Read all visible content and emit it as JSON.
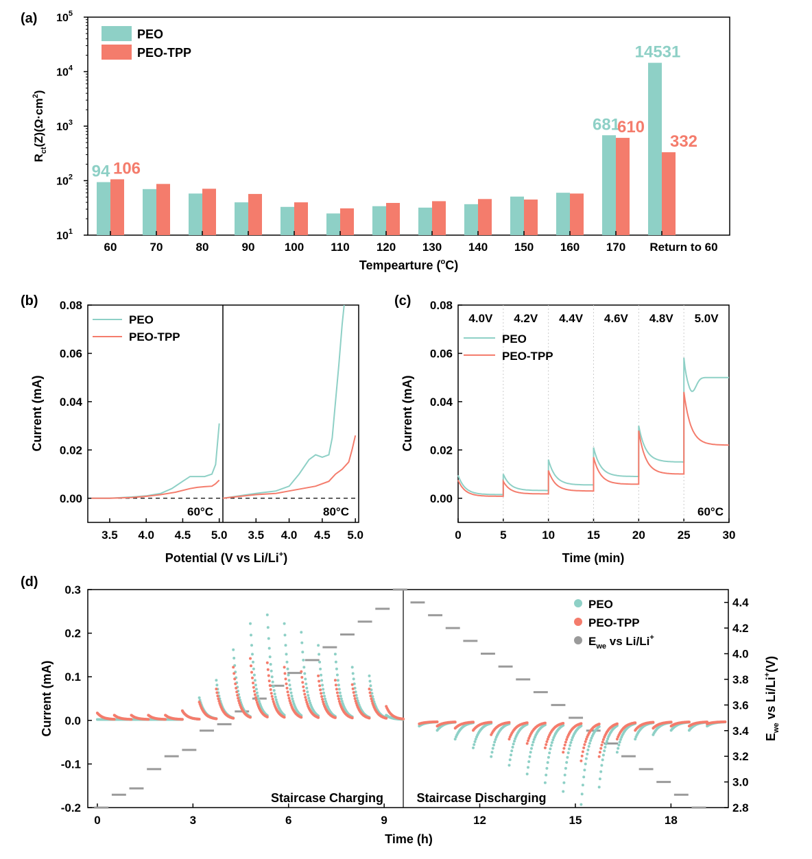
{
  "colors": {
    "peo": "#8ED0C6",
    "tpp": "#F47C6C",
    "ewe": "#9A9A9A",
    "axis": "#000000"
  },
  "chart_data": [
    {
      "panel": "(a)",
      "type": "bar",
      "scale": "log",
      "ylim": [
        10,
        100000
      ],
      "ylabel": "Rct(Z)(Ω·cm2)",
      "xlabel": "Tempearture (°C)",
      "legend_position": "top-left",
      "categories": [
        "60",
        "70",
        "80",
        "90",
        "100",
        "110",
        "120",
        "130",
        "140",
        "150",
        "160",
        "170",
        "Return to 60"
      ],
      "series": [
        {
          "name": "PEO",
          "values": [
            94,
            70,
            58,
            40,
            33,
            25,
            34,
            32,
            37,
            51,
            60,
            681,
            14531
          ]
        },
        {
          "name": "PEO-TPP",
          "values": [
            106,
            87,
            71,
            57,
            40,
            31,
            39,
            42,
            46,
            45,
            58,
            610,
            332
          ]
        }
      ],
      "annotations": [
        {
          "category": "60",
          "series": "PEO",
          "text": "94"
        },
        {
          "category": "60",
          "series": "PEO-TPP",
          "text": "106"
        },
        {
          "category": "170",
          "series": "PEO",
          "text": "681"
        },
        {
          "category": "170",
          "series": "PEO-TPP",
          "text": "610"
        },
        {
          "category": "Return to 60",
          "series": "PEO",
          "text": "14531"
        },
        {
          "category": "Return to 60",
          "series": "PEO-TPP",
          "text": "332"
        }
      ]
    },
    {
      "panel": "(b)",
      "type": "line",
      "ylabel": "Current (mA)",
      "xlabel": "Potential (V vs Li/Li+)",
      "ylim": [
        -0.01,
        0.08
      ],
      "yticks": [
        "0.00",
        "0.02",
        "0.04",
        "0.06",
        "0.08"
      ],
      "legend_position": "top-left",
      "subpanels": [
        {
          "label": "60°C",
          "xlim": [
            3.2,
            5.05
          ],
          "xticks": [
            "3.5",
            "4.0",
            "4.5",
            "5.0"
          ],
          "series": [
            {
              "name": "PEO",
              "x": [
                3.25,
                3.5,
                3.8,
                4.0,
                4.2,
                4.35,
                4.5,
                4.6,
                4.7,
                4.8,
                4.9,
                4.95,
                5.0
              ],
              "y": [
                0.0,
                0.0,
                0.0005,
                0.001,
                0.002,
                0.004,
                0.007,
                0.009,
                0.009,
                0.009,
                0.01,
                0.014,
                0.031
              ]
            },
            {
              "name": "PEO-TPP",
              "x": [
                3.25,
                3.5,
                3.8,
                4.0,
                4.2,
                4.4,
                4.6,
                4.7,
                4.8,
                4.9,
                4.95,
                5.0
              ],
              "y": [
                0.0,
                0.0,
                0.0003,
                0.0008,
                0.0015,
                0.0025,
                0.004,
                0.0045,
                0.0048,
                0.005,
                0.006,
                0.0075
              ]
            }
          ]
        },
        {
          "label": "80°C",
          "xlim": [
            3.0,
            5.05
          ],
          "xticks": [
            "3.5",
            "4.0",
            "4.5",
            "5.0"
          ],
          "series": [
            {
              "name": "PEO",
              "x": [
                3.0,
                3.5,
                3.8,
                4.0,
                4.15,
                4.3,
                4.4,
                4.5,
                4.6,
                4.65,
                4.7,
                4.75,
                4.8,
                4.83
              ],
              "y": [
                0.0,
                0.002,
                0.003,
                0.005,
                0.01,
                0.016,
                0.018,
                0.017,
                0.018,
                0.025,
                0.04,
                0.055,
                0.072,
                0.08
              ]
            },
            {
              "name": "PEO-TPP",
              "x": [
                3.0,
                3.5,
                3.8,
                4.0,
                4.2,
                4.4,
                4.6,
                4.7,
                4.8,
                4.9,
                4.95,
                5.0
              ],
              "y": [
                0.0,
                0.0015,
                0.002,
                0.003,
                0.004,
                0.005,
                0.007,
                0.01,
                0.012,
                0.015,
                0.02,
                0.026
              ]
            }
          ]
        }
      ]
    },
    {
      "panel": "(c)",
      "type": "line",
      "xlabel": "Time (min)",
      "ylabel": "Current (mA)",
      "xlim": [
        0,
        30
      ],
      "ylim": [
        -0.01,
        0.08
      ],
      "xticks": [
        "0",
        "5",
        "10",
        "15",
        "20",
        "25",
        "30"
      ],
      "yticks": [
        "0.00",
        "0.02",
        "0.04",
        "0.06",
        "0.08"
      ],
      "step_labels": [
        "4.0V",
        "4.2V",
        "4.4V",
        "4.6V",
        "4.8V",
        "5.0V"
      ],
      "temperature_label": "60°C",
      "legend_position": "top-left",
      "series": [
        {
          "name": "PEO",
          "steps": [
            {
              "start": 0,
              "peak": 0.0095,
              "end": 0.0015
            },
            {
              "start": 5,
              "peak": 0.01,
              "end": 0.0032
            },
            {
              "start": 10,
              "peak": 0.016,
              "end": 0.0055
            },
            {
              "start": 15,
              "peak": 0.021,
              "end": 0.009
            },
            {
              "start": 20,
              "peak": 0.03,
              "end": 0.015
            },
            {
              "start": 25,
              "peak": 0.055,
              "end": 0.05
            }
          ]
        },
        {
          "name": "PEO-TPP",
          "steps": [
            {
              "start": 0,
              "peak": 0.0075,
              "end": 0.0008
            },
            {
              "start": 5,
              "peak": 0.007,
              "end": 0.0018
            },
            {
              "start": 10,
              "peak": 0.0115,
              "end": 0.003
            },
            {
              "start": 15,
              "peak": 0.017,
              "end": 0.0058
            },
            {
              "start": 20,
              "peak": 0.028,
              "end": 0.01
            },
            {
              "start": 25,
              "peak": 0.044,
              "end": 0.022
            }
          ]
        }
      ]
    },
    {
      "panel": "(d)",
      "type": "scatter",
      "xlabel": "Time (h)",
      "ylabel": "Current (mA)",
      "ylabel_right": "Ewe vs Li/Li+(V)",
      "xlim": [
        -0.3,
        19.8
      ],
      "ylim": [
        -0.2,
        0.3
      ],
      "y2lim": [
        2.8,
        4.5
      ],
      "xticks": [
        "0",
        "3",
        "6",
        "9",
        "12",
        "15",
        "18"
      ],
      "yticks": [
        "-0.2",
        "-0.1",
        "0.0",
        "0.1",
        "0.2",
        "0.3"
      ],
      "y2ticks": [
        "2.8",
        "3.0",
        "3.2",
        "3.4",
        "3.6",
        "3.8",
        "4.0",
        "4.2",
        "4.4"
      ],
      "divider_x": 9.6,
      "region_labels": [
        "Staircase Charging",
        "Staircase Discharging"
      ],
      "legend_position": "top-right",
      "series": [
        {
          "name": "PEO",
          "charge_peaks": [
            0.0,
            0.0,
            0.0,
            0.0,
            0.0,
            0.02,
            0.05,
            0.09,
            0.16,
            0.22,
            0.24,
            0.22,
            0.2,
            0.17,
            0.15,
            0.12,
            0.1,
            0.01
          ],
          "discharge_peaks": [
            -0.01,
            -0.02,
            -0.04,
            -0.06,
            -0.08,
            -0.1,
            -0.12,
            -0.14,
            -0.16,
            -0.19,
            -0.15,
            -0.07,
            -0.04,
            -0.03,
            -0.02,
            -0.02,
            -0.01
          ]
        },
        {
          "name": "PEO-TPP",
          "charge_peaks": [
            0.015,
            0.01,
            0.01,
            0.01,
            0.01,
            0.02,
            0.04,
            0.07,
            0.12,
            0.14,
            0.13,
            0.12,
            0.11,
            0.1,
            0.09,
            0.08,
            0.07,
            0.03
          ],
          "discharge_peaks": [
            -0.005,
            -0.01,
            -0.015,
            -0.02,
            -0.03,
            -0.04,
            -0.05,
            -0.06,
            -0.07,
            -0.09,
            -0.08,
            -0.04,
            -0.02,
            -0.015,
            -0.01,
            -0.01,
            -0.005
          ]
        },
        {
          "name": "Ewe vs Li/Li+",
          "steps": [
            2.8,
            2.9,
            2.95,
            3.1,
            3.2,
            3.25,
            3.4,
            3.45,
            3.55,
            3.65,
            3.75,
            3.85,
            3.95,
            4.05,
            4.15,
            4.25,
            4.35,
            4.5,
            4.4,
            4.3,
            4.2,
            4.1,
            4.0,
            3.9,
            3.8,
            3.7,
            3.6,
            3.5,
            3.4,
            3.3,
            3.2,
            3.1,
            3.0,
            2.9,
            2.8
          ]
        }
      ]
    }
  ],
  "text": {
    "a_label": "(a)",
    "b_label": "(b)",
    "c_label": "(c)",
    "d_label": "(d)",
    "legend_peo": "PEO",
    "legend_tpp": "PEO-TPP",
    "legend_ewe_main": "E",
    "legend_ewe_sub": "we",
    "legend_ewe_rest": " vs Li/Li",
    "legend_ewe_sup": "+",
    "a_ylabel_R": "R",
    "a_ylabel_sub": "ct",
    "a_ylabel_mid": "(Z)(Ω·cm",
    "a_ylabel_sup": "2",
    "a_ylabel_end": ")",
    "a_xlabel_pre": "Tempearture (",
    "a_xlabel_sup": "o",
    "a_xlabel_post": "C)",
    "b_xlabel_pre": "Potential (V vs Li/Li",
    "b_xlabel_sup": "+",
    "b_xlabel_post": ")",
    "d_y2_main": "E",
    "d_y2_sub": "we",
    "d_y2_mid": " vs Li/Li",
    "d_y2_sup": "+",
    "d_y2_end": "(V)",
    "a_yticks": [
      "10",
      "10",
      "10",
      "10",
      "10"
    ],
    "a_ytick_exp": [
      "1",
      "2",
      "3",
      "4",
      "5"
    ]
  }
}
